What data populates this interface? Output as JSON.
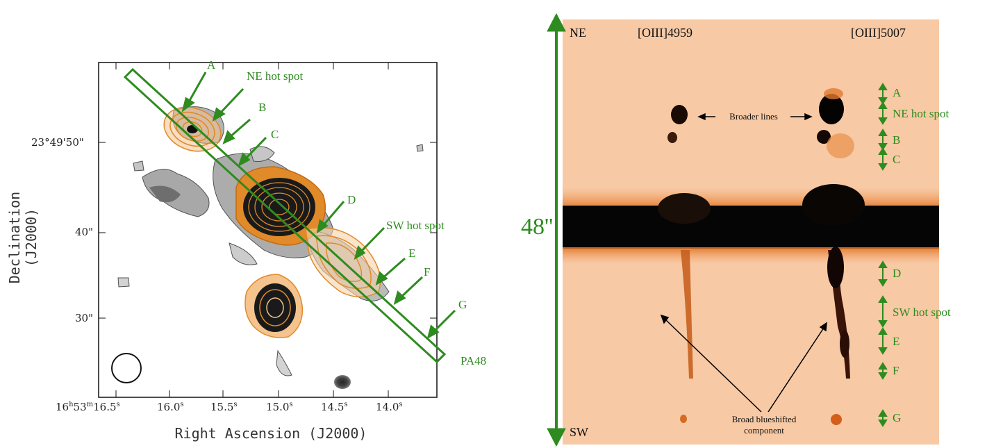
{
  "left_panel": {
    "xlabel": "Right Ascension (J2000)",
    "ylabel": "Declination (J2000)",
    "x_ticks": [
      {
        "label": "16h53m16.5s"
      },
      {
        "label": "16.0s"
      },
      {
        "label": "15.5s"
      },
      {
        "label": "15.0s"
      },
      {
        "label": "14.5s"
      },
      {
        "label": "14.0s"
      }
    ],
    "x_tick_parts": {
      "first": {
        "h": "16",
        "hs": "h",
        "m": "53",
        "ms": "m",
        "sec": "16.5",
        "ss": "s"
      },
      "rest": [
        {
          "v": "16.0",
          "s": "s"
        },
        {
          "v": "15.5",
          "s": "s"
        },
        {
          "v": "15.0",
          "s": "s"
        },
        {
          "v": "14.5",
          "s": "s"
        },
        {
          "v": "14.0",
          "s": "s"
        }
      ]
    },
    "y_ticks": [
      "23°49'50\"",
      "40\"",
      "30\""
    ],
    "labels": {
      "A": "A",
      "ne_hot_spot": "NE hot spot",
      "B": "B",
      "C": "C",
      "D": "D",
      "sw_hot_spot": "SW hot spot",
      "E": "E",
      "F": "F",
      "G": "G",
      "pa": "PA48"
    }
  },
  "right_panel": {
    "scale_label": "48''",
    "ne": "NE",
    "sw": "SW",
    "line1": "[OIII]4959",
    "line2": "[OIII]5007",
    "broader_lines": "Broader lines",
    "broad_component_1": "Broad blueshifted",
    "broad_component_2": "component",
    "regions": [
      "A",
      "NE hot spot",
      "B",
      "C",
      "D",
      "SW hot spot",
      "E",
      "F",
      "G"
    ]
  },
  "colors": {
    "green": "#2e8b1f",
    "orange": "#e08a2a",
    "spectrum_bg": "#f7c9a4"
  }
}
